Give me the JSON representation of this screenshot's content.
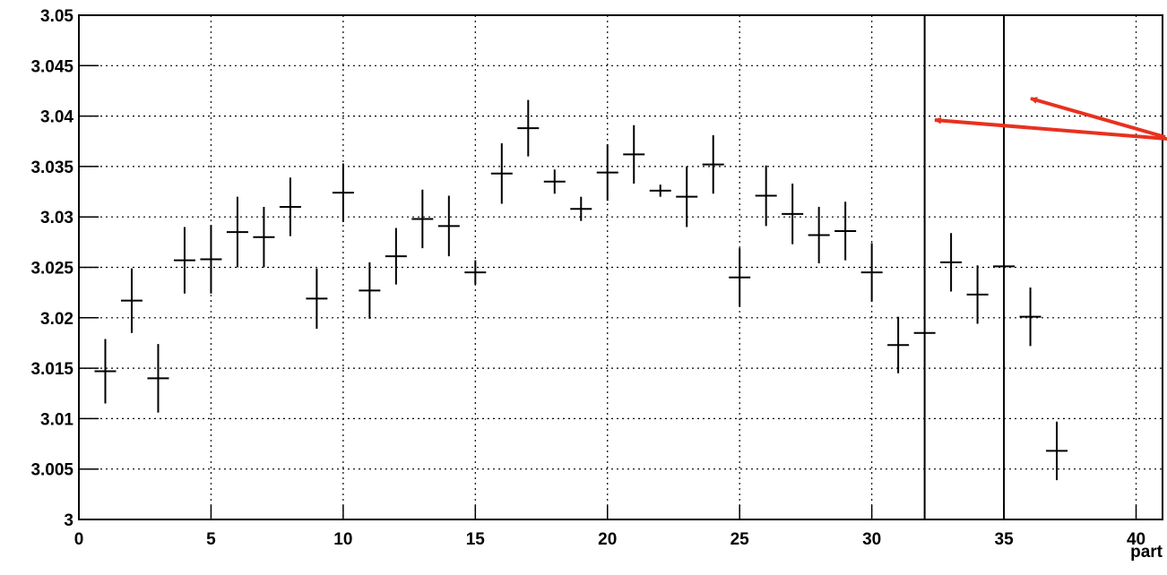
{
  "chart_data": {
    "type": "errorbar",
    "x_label": "part",
    "x": [
      1,
      2,
      3,
      4,
      5,
      6,
      7,
      8,
      9,
      10,
      11,
      12,
      13,
      14,
      15,
      16,
      17,
      18,
      19,
      20,
      21,
      22,
      23,
      24,
      25,
      26,
      27,
      28,
      29,
      30,
      31,
      32,
      33,
      34,
      35,
      36,
      37
    ],
    "values": [
      3.0147,
      3.0217,
      3.014,
      3.0257,
      3.0258,
      3.0285,
      3.028,
      3.031,
      3.0219,
      3.0324,
      3.0227,
      3.0261,
      3.0298,
      3.0291,
      3.0245,
      3.0343,
      3.0388,
      3.0335,
      3.0308,
      3.0344,
      3.0362,
      3.0326,
      3.032,
      3.0352,
      3.024,
      3.0321,
      3.0303,
      3.0282,
      3.0286,
      3.0245,
      3.0173,
      3.0185,
      3.0255,
      3.0223,
      3.0251,
      3.0201,
      3.0068
    ],
    "errors": [
      0.0032,
      0.0032,
      0.0034,
      0.0033,
      0.0034,
      0.0035,
      0.003,
      0.0029,
      0.003,
      0.0029,
      0.0028,
      0.0028,
      0.0029,
      0.003,
      0.0012,
      0.003,
      0.0028,
      0.0012,
      0.0012,
      0.0028,
      0.0029,
      0.0006,
      0.003,
      0.0029,
      0.0029,
      0.003,
      0.003,
      0.0028,
      0.0029,
      0.0029,
      0.0028,
      0,
      0.0029,
      0.0029,
      0,
      0.0029,
      0.0029
    ],
    "color": "#000000",
    "xlim": [
      0,
      41
    ],
    "xticks": [
      0,
      5,
      10,
      15,
      20,
      25,
      30,
      35,
      40
    ],
    "ylim": [
      3,
      3.05
    ],
    "yticks": [
      3,
      3.005,
      3.01,
      3.015,
      3.02,
      3.025,
      3.03,
      3.035,
      3.04,
      3.045,
      3.05
    ],
    "vlines": [
      32,
      35
    ],
    "grid": true
  }
}
